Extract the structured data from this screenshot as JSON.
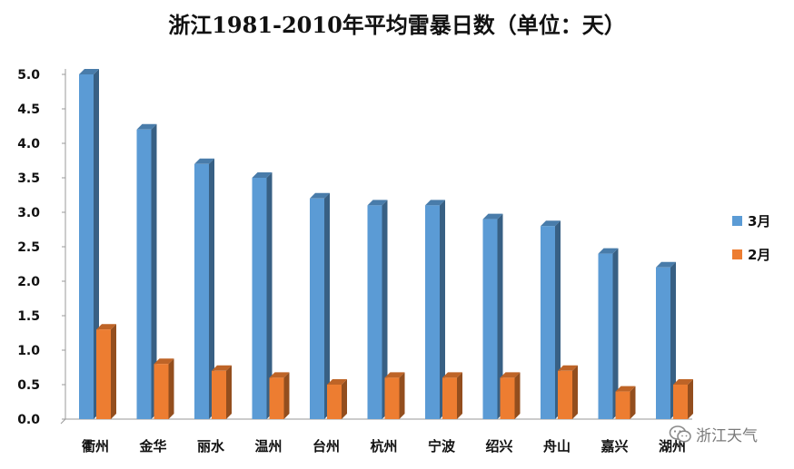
{
  "chart_data": {
    "type": "bar",
    "title": "浙江1981-2010年平均雷暴日数（单位：天）",
    "categories": [
      "衢州",
      "金华",
      "丽水",
      "温州",
      "台州",
      "杭州",
      "宁波",
      "绍兴",
      "舟山",
      "嘉兴",
      "湖州"
    ],
    "series": [
      {
        "name": "3月",
        "color": "#5B9BD5",
        "values": [
          5.0,
          4.2,
          3.7,
          3.5,
          3.2,
          3.1,
          3.1,
          2.9,
          2.8,
          2.4,
          2.2
        ]
      },
      {
        "name": "2月",
        "color": "#ED7D31",
        "values": [
          1.3,
          0.8,
          0.7,
          0.6,
          0.5,
          0.6,
          0.6,
          0.6,
          0.7,
          0.4,
          0.5
        ]
      }
    ],
    "yticks": [
      "0.0",
      "0.5",
      "1.0",
      "1.5",
      "2.0",
      "2.5",
      "3.0",
      "3.5",
      "4.0",
      "4.5",
      "5.0"
    ],
    "ylim": [
      0,
      5.0
    ],
    "legend_position": "right",
    "grid": false
  },
  "watermark": {
    "text": "浙江天气",
    "icon": "wechat-icon"
  }
}
